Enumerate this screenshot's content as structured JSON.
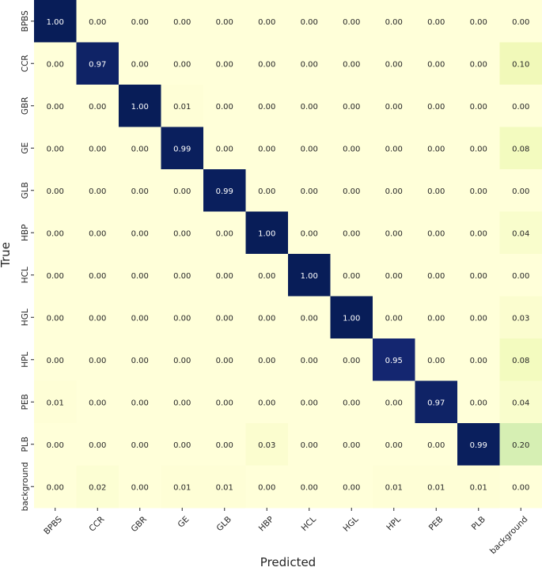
{
  "chart_data": {
    "type": "heatmap",
    "title": "",
    "xlabel": "Predicted",
    "ylabel": "True",
    "x_categories": [
      "BPBS",
      "CCR",
      "GBR",
      "GE",
      "GLB",
      "HBP",
      "HCL",
      "HGL",
      "HPL",
      "PEB",
      "PLB",
      "background"
    ],
    "y_categories": [
      "BPBS",
      "CCR",
      "GBR",
      "GE",
      "GLB",
      "HBP",
      "HCL",
      "HGL",
      "HPL",
      "PEB",
      "PLB",
      "background"
    ],
    "values": [
      [
        1.0,
        0.0,
        0.0,
        0.0,
        0.0,
        0.0,
        0.0,
        0.0,
        0.0,
        0.0,
        0.0,
        0.0
      ],
      [
        0.0,
        0.97,
        0.0,
        0.0,
        0.0,
        0.0,
        0.0,
        0.0,
        0.0,
        0.0,
        0.0,
        0.1
      ],
      [
        0.0,
        0.0,
        1.0,
        0.01,
        0.0,
        0.0,
        0.0,
        0.0,
        0.0,
        0.0,
        0.0,
        0.0
      ],
      [
        0.0,
        0.0,
        0.0,
        0.99,
        0.0,
        0.0,
        0.0,
        0.0,
        0.0,
        0.0,
        0.0,
        0.08
      ],
      [
        0.0,
        0.0,
        0.0,
        0.0,
        0.99,
        0.0,
        0.0,
        0.0,
        0.0,
        0.0,
        0.0,
        0.0
      ],
      [
        0.0,
        0.0,
        0.0,
        0.0,
        0.0,
        1.0,
        0.0,
        0.0,
        0.0,
        0.0,
        0.0,
        0.04
      ],
      [
        0.0,
        0.0,
        0.0,
        0.0,
        0.0,
        0.0,
        1.0,
        0.0,
        0.0,
        0.0,
        0.0,
        0.0
      ],
      [
        0.0,
        0.0,
        0.0,
        0.0,
        0.0,
        0.0,
        0.0,
        1.0,
        0.0,
        0.0,
        0.0,
        0.03
      ],
      [
        0.0,
        0.0,
        0.0,
        0.0,
        0.0,
        0.0,
        0.0,
        0.0,
        0.95,
        0.0,
        0.0,
        0.08
      ],
      [
        0.01,
        0.0,
        0.0,
        0.0,
        0.0,
        0.0,
        0.0,
        0.0,
        0.0,
        0.97,
        0.0,
        0.04
      ],
      [
        0.0,
        0.0,
        0.0,
        0.0,
        0.0,
        0.03,
        0.0,
        0.0,
        0.0,
        0.0,
        0.99,
        0.2
      ],
      [
        0.0,
        0.02,
        0.0,
        0.01,
        0.01,
        0.0,
        0.0,
        0.0,
        0.01,
        0.01,
        0.01,
        0.0
      ]
    ],
    "colormap": "YlGnBu",
    "value_range": [
      0,
      1
    ],
    "grid": false,
    "legend": "none"
  },
  "colors": {
    "low": "#ffffd9",
    "high": "#081d58",
    "text_on_light": "#262626",
    "text_on_dark": "#ffffff"
  }
}
